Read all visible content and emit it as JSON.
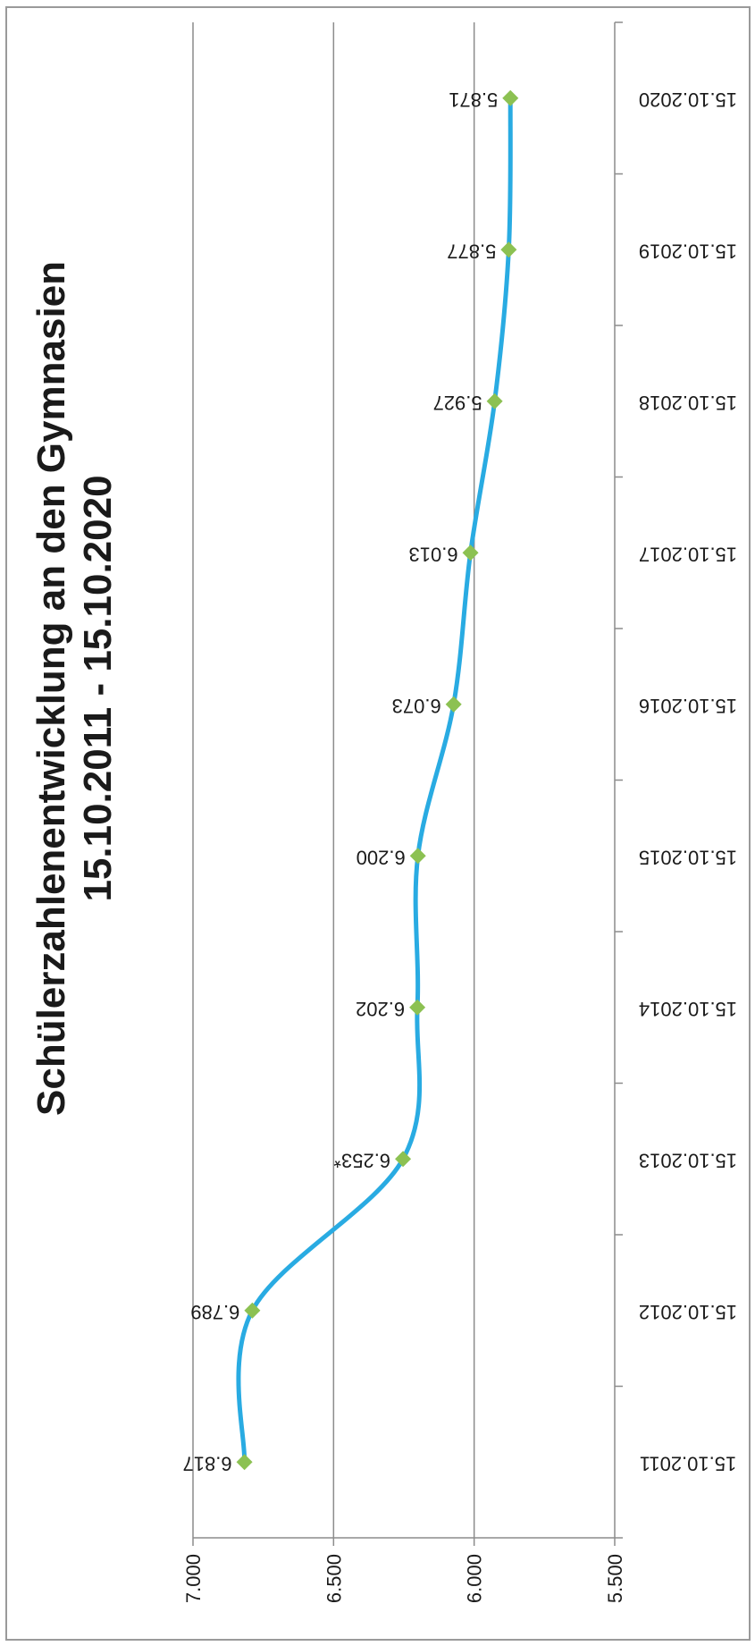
{
  "chart_data": {
    "type": "line",
    "title_line1": "Schülerzahlenentwicklung an den Gymnasien",
    "title_line2": "15.10.2011 - 15.10.2020",
    "categories": [
      "15.10.2011",
      "15.10.2012",
      "15.10.2013",
      "15.10.2014",
      "15.10.2015",
      "15.10.2016",
      "15.10.2017",
      "15.10.2018",
      "15.10.2019",
      "15.10.2020"
    ],
    "values": [
      6817,
      6789,
      6253,
      6202,
      6200,
      6073,
      6013,
      5927,
      5877,
      5871
    ],
    "data_labels": [
      "6.817",
      "6.789",
      "6.253*",
      "6.202",
      "6.200",
      "6.073",
      "6.013",
      "5.927",
      "5.877",
      "5.871"
    ],
    "ylim": [
      5500,
      7000
    ],
    "y_ticks": [
      5500,
      6000,
      6500,
      7000
    ],
    "y_tick_labels": [
      "5.500",
      "6.000",
      "6.500",
      "7.000"
    ],
    "grid": true,
    "line_color": "#29abe2",
    "marker_color": "#8cc152",
    "marker": "diamond",
    "smooth": true,
    "orientation": "rotated 90 degrees clockwise"
  }
}
